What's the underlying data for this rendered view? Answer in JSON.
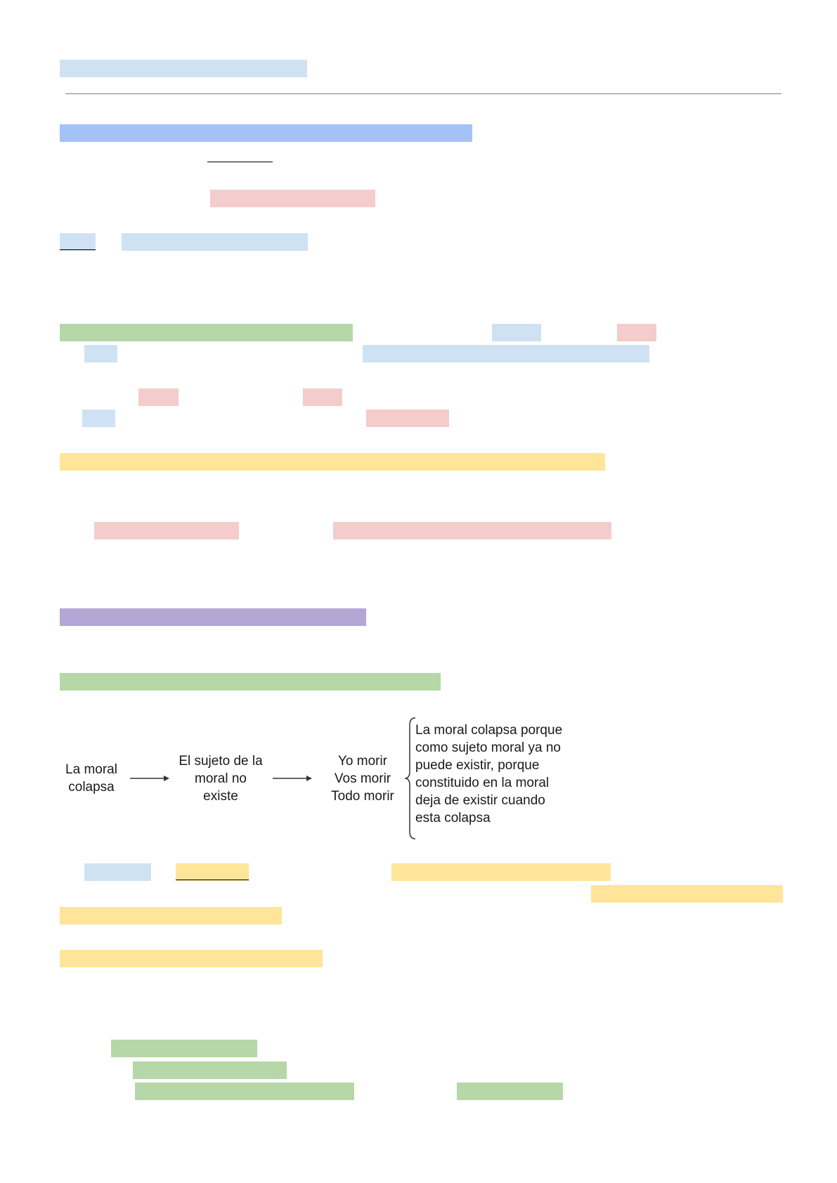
{
  "diagram": {
    "step1": "La moral\ncolapsa",
    "step2": "El sujeto de la\nmoral no\nexiste",
    "step3": "Yo morir\nVos morir\nTodo morir",
    "explanation": "La moral colapsa porque\ncomo sujeto moral ya no\npuede existir, porque\nconstituido en la moral\ndeja de existir cuando\nesta colapsa"
  },
  "colors": {
    "highlight_light_blue": "#cfe2f3",
    "highlight_blue": "#a4c2f4",
    "highlight_pink": "#f4cccc",
    "highlight_green": "#b6d7a8",
    "highlight_yellow": "#ffe599",
    "highlight_purple": "#b4a7d6"
  }
}
